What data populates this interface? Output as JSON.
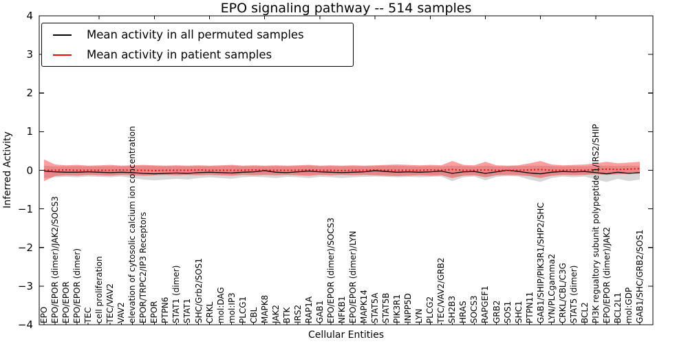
{
  "chart_data": {
    "type": "line",
    "title": "EPO signaling pathway -- 514 samples",
    "xlabel": "Cellular Entities",
    "ylabel": "Inferred Activity",
    "ylim": [
      -4,
      4
    ],
    "yticks": [
      4,
      3,
      2,
      1,
      0,
      -1,
      -2,
      -3,
      -4
    ],
    "grid": false,
    "legend_position": "upper left",
    "categories": [
      "EPO",
      "EPO/EPOR (dimer)/JAK2/SOCS3",
      "EPO/EPOR",
      "EPO/EPOR (dimer)",
      "TEC",
      "cell proliferation",
      "TEC/VAV2",
      "VAV2",
      "elevation of cytosolic calcium ion concentration",
      "EPOR/TRPC2/IP3 Receptors",
      "EPOR",
      "PTPN6",
      "STAT1 (dimer)",
      "STAT1",
      "SHC/Grb2/SOS1",
      "CRKL",
      "mol:DAG",
      "mol:IP3",
      "PLCG1",
      "CBL",
      "MAPK8",
      "JAK2",
      "BTK",
      "IRS2",
      "RAP1A",
      "GAB1",
      "EPO/EPOR (dimer)/SOCS3",
      "NFKB1",
      "EPO/EPOR (dimer)/LYN",
      "MAPK14",
      "STAT5A",
      "STAT5B",
      "PIK3R1",
      "INPP5D",
      "LYN",
      "PLCG2",
      "TEC/VAV2/GRB2",
      "SH2B3",
      "HRAS",
      "SOCS3",
      "RAPGEF1",
      "GRB2",
      "SOS1",
      "SHC1",
      "PTPN11",
      "GAB1/SHIP/PIK3R1/SHP2/SHC",
      "LYN/PLCgamma2",
      "CRKL/CBL/C3G",
      "STAT5 (dimer)",
      "BCL2",
      "PI3K regualtory subunit polypeptide 1/IRS2/SHIP",
      "EPO/EPOR (dimer)/JAK2",
      "BCL2L1",
      "mol:GDP",
      "GAB1/SHC/GRB2/SOS1"
    ],
    "series": [
      {
        "name": "Mean activity in all permuted samples",
        "color": "#000000",
        "width": 1.3,
        "dash": "",
        "values": [
          -0.02,
          -0.04,
          -0.05,
          -0.05,
          -0.04,
          -0.05,
          -0.06,
          -0.05,
          -0.06,
          -0.08,
          -0.09,
          -0.08,
          -0.07,
          -0.08,
          -0.06,
          -0.05,
          -0.06,
          -0.07,
          -0.05,
          -0.04,
          -0.01,
          -0.05,
          -0.06,
          -0.04,
          -0.02,
          -0.04,
          -0.05,
          -0.06,
          -0.05,
          -0.04,
          -0.01,
          -0.03,
          -0.05,
          -0.04,
          -0.05,
          -0.04,
          -0.02,
          -0.08,
          -0.04,
          -0.03,
          -0.08,
          -0.04,
          0.0,
          -0.03,
          -0.07,
          -0.09,
          -0.05,
          -0.03,
          -0.04,
          -0.03,
          -0.06,
          -0.09,
          -0.05,
          -0.08,
          -0.06
        ]
      },
      {
        "name": "Mean activity in patient samples",
        "color": "#ff0000",
        "width": 2,
        "dash": "2 3.2",
        "values": [
          0,
          0,
          0.01,
          0,
          0,
          0,
          0,
          0.01,
          0,
          0,
          -0.01,
          0,
          0,
          0,
          0.01,
          0,
          0,
          0,
          0,
          0.01,
          0,
          0,
          0,
          0,
          0.01,
          0,
          0,
          -0.01,
          0,
          0,
          0.01,
          0,
          0,
          0,
          0,
          0.01,
          0,
          0.02,
          0,
          0,
          0.01,
          0,
          0,
          0,
          0.01,
          0.02,
          0,
          0,
          0.01,
          0,
          0.02,
          0.03,
          0.02,
          0.03,
          0.04
        ]
      }
    ],
    "bands": [
      {
        "name": "permuted_range",
        "color": "rgba(110,110,110,0.28)",
        "upper": [
          0.12,
          0.1,
          0.1,
          0.11,
          0.1,
          0.1,
          0.11,
          0.1,
          0.11,
          0.12,
          0.11,
          0.1,
          0.11,
          0.1,
          0.11,
          0.1,
          0.11,
          0.12,
          0.1,
          0.11,
          0.1,
          0.11,
          0.1,
          0.11,
          0.12,
          0.1,
          0.11,
          0.1,
          0.11,
          0.1,
          0.11,
          0.12,
          0.12,
          0.11,
          0.1,
          0.11,
          0.1,
          0.12,
          0.11,
          0.1,
          0.12,
          0.1,
          0.1,
          0.11,
          0.12,
          0.12,
          0.11,
          0.1,
          0.11,
          0.1,
          0.11,
          0.12,
          0.11,
          0.12,
          0.11
        ],
        "lower": [
          -0.2,
          -0.18,
          -0.17,
          -0.18,
          -0.16,
          -0.17,
          -0.18,
          -0.16,
          -0.2,
          -0.24,
          -0.26,
          -0.24,
          -0.22,
          -0.24,
          -0.2,
          -0.18,
          -0.2,
          -0.22,
          -0.18,
          -0.17,
          -0.18,
          -0.2,
          -0.17,
          -0.18,
          -0.2,
          -0.17,
          -0.18,
          -0.2,
          -0.18,
          -0.17,
          -0.16,
          -0.17,
          -0.18,
          -0.17,
          -0.18,
          -0.17,
          -0.16,
          -0.28,
          -0.18,
          -0.16,
          -0.26,
          -0.17,
          -0.15,
          -0.16,
          -0.24,
          -0.3,
          -0.2,
          -0.16,
          -0.18,
          -0.16,
          -0.24,
          -0.3,
          -0.22,
          -0.28,
          -0.24
        ]
      },
      {
        "name": "patient_range",
        "color": "rgba(255,25,25,0.42)",
        "upper": [
          0.28,
          0.15,
          0.13,
          0.14,
          0.12,
          0.13,
          0.14,
          0.12,
          0.13,
          0.14,
          0.13,
          0.12,
          0.13,
          0.12,
          0.13,
          0.12,
          0.13,
          0.14,
          0.12,
          0.13,
          0.12,
          0.13,
          0.12,
          0.13,
          0.14,
          0.12,
          0.13,
          0.12,
          0.13,
          0.12,
          0.13,
          0.14,
          0.15,
          0.14,
          0.13,
          0.14,
          0.13,
          0.24,
          0.14,
          0.13,
          0.22,
          0.13,
          0.12,
          0.13,
          0.18,
          0.24,
          0.15,
          0.13,
          0.14,
          0.15,
          0.18,
          0.22,
          0.18,
          0.2,
          0.22
        ],
        "lower": [
          -0.28,
          -0.15,
          -0.13,
          -0.14,
          -0.12,
          -0.13,
          -0.14,
          -0.12,
          -0.13,
          -0.14,
          -0.13,
          -0.12,
          -0.13,
          -0.12,
          -0.13,
          -0.12,
          -0.13,
          -0.14,
          -0.12,
          -0.13,
          -0.12,
          -0.13,
          -0.12,
          -0.13,
          -0.14,
          -0.12,
          -0.13,
          -0.12,
          -0.13,
          -0.12,
          -0.13,
          -0.14,
          -0.15,
          -0.14,
          -0.13,
          -0.14,
          -0.13,
          -0.2,
          -0.14,
          -0.13,
          -0.18,
          -0.13,
          -0.12,
          -0.13,
          -0.15,
          -0.2,
          -0.14,
          -0.12,
          -0.13,
          -0.12,
          -0.1,
          -0.12,
          -0.1,
          -0.09,
          -0.08
        ]
      }
    ]
  }
}
